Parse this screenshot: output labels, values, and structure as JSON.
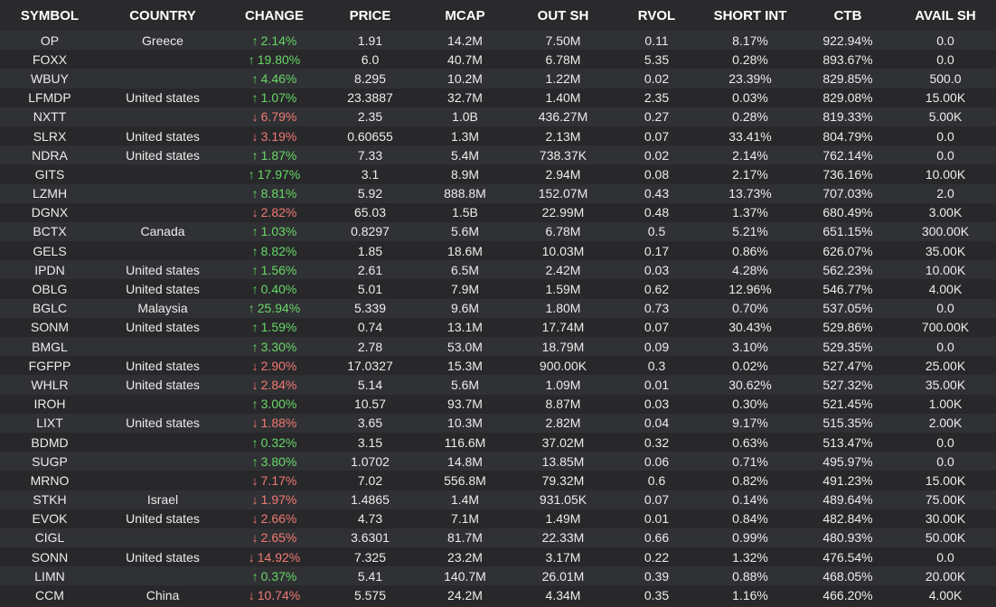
{
  "colors": {
    "positive": "#67d867",
    "negative": "#f07a72",
    "background": "#2b2b2e"
  },
  "icons": {
    "up": "arrow-up-icon",
    "down": "arrow-down-icon"
  },
  "headers": [
    "SYMBOL",
    "COUNTRY",
    "CHANGE",
    "PRICE",
    "MCAP",
    "OUT SH",
    "RVOL",
    "SHORT INT",
    "CTB",
    "AVAIL SH"
  ],
  "rows": [
    {
      "symbol": "OP",
      "country": "Greece",
      "dir": "up",
      "change": "2.14%",
      "price": "1.91",
      "mcap": "14.2M",
      "out_sh": "7.50M",
      "rvol": "0.11",
      "short_int": "8.17%",
      "ctb": "922.94%",
      "avail_sh": "0.0"
    },
    {
      "symbol": "FOXX",
      "country": "",
      "dir": "up",
      "change": "19.80%",
      "price": "6.0",
      "mcap": "40.7M",
      "out_sh": "6.78M",
      "rvol": "5.35",
      "short_int": "0.28%",
      "ctb": "893.67%",
      "avail_sh": "0.0"
    },
    {
      "symbol": "WBUY",
      "country": "",
      "dir": "up",
      "change": "4.46%",
      "price": "8.295",
      "mcap": "10.2M",
      "out_sh": "1.22M",
      "rvol": "0.02",
      "short_int": "23.39%",
      "ctb": "829.85%",
      "avail_sh": "500.0"
    },
    {
      "symbol": "LFMDP",
      "country": "United states",
      "dir": "up",
      "change": "1.07%",
      "price": "23.3887",
      "mcap": "32.7M",
      "out_sh": "1.40M",
      "rvol": "2.35",
      "short_int": "0.03%",
      "ctb": "829.08%",
      "avail_sh": "15.00K"
    },
    {
      "symbol": "NXTT",
      "country": "",
      "dir": "down",
      "change": "6.79%",
      "price": "2.35",
      "mcap": "1.0B",
      "out_sh": "436.27M",
      "rvol": "0.27",
      "short_int": "0.28%",
      "ctb": "819.33%",
      "avail_sh": "5.00K"
    },
    {
      "symbol": "SLRX",
      "country": "United states",
      "dir": "down",
      "change": "3.19%",
      "price": "0.60655",
      "mcap": "1.3M",
      "out_sh": "2.13M",
      "rvol": "0.07",
      "short_int": "33.41%",
      "ctb": "804.79%",
      "avail_sh": "0.0"
    },
    {
      "symbol": "NDRA",
      "country": "United states",
      "dir": "up",
      "change": "1.87%",
      "price": "7.33",
      "mcap": "5.4M",
      "out_sh": "738.37K",
      "rvol": "0.02",
      "short_int": "2.14%",
      "ctb": "762.14%",
      "avail_sh": "0.0"
    },
    {
      "symbol": "GITS",
      "country": "",
      "dir": "up",
      "change": "17.97%",
      "price": "3.1",
      "mcap": "8.9M",
      "out_sh": "2.94M",
      "rvol": "0.08",
      "short_int": "2.17%",
      "ctb": "736.16%",
      "avail_sh": "10.00K"
    },
    {
      "symbol": "LZMH",
      "country": "",
      "dir": "up",
      "change": "8.81%",
      "price": "5.92",
      "mcap": "888.8M",
      "out_sh": "152.07M",
      "rvol": "0.43",
      "short_int": "13.73%",
      "ctb": "707.03%",
      "avail_sh": "2.0"
    },
    {
      "symbol": "DGNX",
      "country": "",
      "dir": "down",
      "change": "2.82%",
      "price": "65.03",
      "mcap": "1.5B",
      "out_sh": "22.99M",
      "rvol": "0.48",
      "short_int": "1.37%",
      "ctb": "680.49%",
      "avail_sh": "3.00K"
    },
    {
      "symbol": "BCTX",
      "country": "Canada",
      "dir": "up",
      "change": "1.03%",
      "price": "0.8297",
      "mcap": "5.6M",
      "out_sh": "6.78M",
      "rvol": "0.5",
      "short_int": "5.21%",
      "ctb": "651.15%",
      "avail_sh": "300.00K"
    },
    {
      "symbol": "GELS",
      "country": "",
      "dir": "up",
      "change": "8.82%",
      "price": "1.85",
      "mcap": "18.6M",
      "out_sh": "10.03M",
      "rvol": "0.17",
      "short_int": "0.86%",
      "ctb": "626.07%",
      "avail_sh": "35.00K"
    },
    {
      "symbol": "IPDN",
      "country": "United states",
      "dir": "up",
      "change": "1.56%",
      "price": "2.61",
      "mcap": "6.5M",
      "out_sh": "2.42M",
      "rvol": "0.03",
      "short_int": "4.28%",
      "ctb": "562.23%",
      "avail_sh": "10.00K"
    },
    {
      "symbol": "OBLG",
      "country": "United states",
      "dir": "up",
      "change": "0.40%",
      "price": "5.01",
      "mcap": "7.9M",
      "out_sh": "1.59M",
      "rvol": "0.62",
      "short_int": "12.96%",
      "ctb": "546.77%",
      "avail_sh": "4.00K"
    },
    {
      "symbol": "BGLC",
      "country": "Malaysia",
      "dir": "up",
      "change": "25.94%",
      "price": "5.339",
      "mcap": "9.6M",
      "out_sh": "1.80M",
      "rvol": "0.73",
      "short_int": "0.70%",
      "ctb": "537.05%",
      "avail_sh": "0.0"
    },
    {
      "symbol": "SONM",
      "country": "United states",
      "dir": "up",
      "change": "1.59%",
      "price": "0.74",
      "mcap": "13.1M",
      "out_sh": "17.74M",
      "rvol": "0.07",
      "short_int": "30.43%",
      "ctb": "529.86%",
      "avail_sh": "700.00K"
    },
    {
      "symbol": "BMGL",
      "country": "",
      "dir": "up",
      "change": "3.30%",
      "price": "2.78",
      "mcap": "53.0M",
      "out_sh": "18.79M",
      "rvol": "0.09",
      "short_int": "3.10%",
      "ctb": "529.35%",
      "avail_sh": "0.0"
    },
    {
      "symbol": "FGFPP",
      "country": "United states",
      "dir": "down",
      "change": "2.90%",
      "price": "17.0327",
      "mcap": "15.3M",
      "out_sh": "900.00K",
      "rvol": "0.3",
      "short_int": "0.02%",
      "ctb": "527.47%",
      "avail_sh": "25.00K"
    },
    {
      "symbol": "WHLR",
      "country": "United states",
      "dir": "down",
      "change": "2.84%",
      "price": "5.14",
      "mcap": "5.6M",
      "out_sh": "1.09M",
      "rvol": "0.01",
      "short_int": "30.62%",
      "ctb": "527.32%",
      "avail_sh": "35.00K"
    },
    {
      "symbol": "IROH",
      "country": "",
      "dir": "up",
      "change": "3.00%",
      "price": "10.57",
      "mcap": "93.7M",
      "out_sh": "8.87M",
      "rvol": "0.03",
      "short_int": "0.30%",
      "ctb": "521.45%",
      "avail_sh": "1.00K"
    },
    {
      "symbol": "LIXT",
      "country": "United states",
      "dir": "down",
      "change": "1.88%",
      "price": "3.65",
      "mcap": "10.3M",
      "out_sh": "2.82M",
      "rvol": "0.04",
      "short_int": "9.17%",
      "ctb": "515.35%",
      "avail_sh": "2.00K"
    },
    {
      "symbol": "BDMD",
      "country": "",
      "dir": "up",
      "change": "0.32%",
      "price": "3.15",
      "mcap": "116.6M",
      "out_sh": "37.02M",
      "rvol": "0.32",
      "short_int": "0.63%",
      "ctb": "513.47%",
      "avail_sh": "0.0"
    },
    {
      "symbol": "SUGP",
      "country": "",
      "dir": "up",
      "change": "3.80%",
      "price": "1.0702",
      "mcap": "14.8M",
      "out_sh": "13.85M",
      "rvol": "0.06",
      "short_int": "0.71%",
      "ctb": "495.97%",
      "avail_sh": "0.0"
    },
    {
      "symbol": "MRNO",
      "country": "",
      "dir": "down",
      "change": "7.17%",
      "price": "7.02",
      "mcap": "556.8M",
      "out_sh": "79.32M",
      "rvol": "0.6",
      "short_int": "0.82%",
      "ctb": "491.23%",
      "avail_sh": "15.00K"
    },
    {
      "symbol": "STKH",
      "country": "Israel",
      "dir": "down",
      "change": "1.97%",
      "price": "1.4865",
      "mcap": "1.4M",
      "out_sh": "931.05K",
      "rvol": "0.07",
      "short_int": "0.14%",
      "ctb": "489.64%",
      "avail_sh": "75.00K"
    },
    {
      "symbol": "EVOK",
      "country": "United states",
      "dir": "down",
      "change": "2.66%",
      "price": "4.73",
      "mcap": "7.1M",
      "out_sh": "1.49M",
      "rvol": "0.01",
      "short_int": "0.84%",
      "ctb": "482.84%",
      "avail_sh": "30.00K"
    },
    {
      "symbol": "CIGL",
      "country": "",
      "dir": "down",
      "change": "2.65%",
      "price": "3.6301",
      "mcap": "81.7M",
      "out_sh": "22.33M",
      "rvol": "0.66",
      "short_int": "0.99%",
      "ctb": "480.93%",
      "avail_sh": "50.00K"
    },
    {
      "symbol": "SONN",
      "country": "United states",
      "dir": "down",
      "change": "14.92%",
      "price": "7.325",
      "mcap": "23.2M",
      "out_sh": "3.17M",
      "rvol": "0.22",
      "short_int": "1.32%",
      "ctb": "476.54%",
      "avail_sh": "0.0"
    },
    {
      "symbol": "LIMN",
      "country": "",
      "dir": "up",
      "change": "0.37%",
      "price": "5.41",
      "mcap": "140.7M",
      "out_sh": "26.01M",
      "rvol": "0.39",
      "short_int": "0.88%",
      "ctb": "468.05%",
      "avail_sh": "20.00K"
    },
    {
      "symbol": "CCM",
      "country": "China",
      "dir": "down",
      "change": "10.74%",
      "price": "5.575",
      "mcap": "24.2M",
      "out_sh": "4.34M",
      "rvol": "0.35",
      "short_int": "1.16%",
      "ctb": "466.20%",
      "avail_sh": "4.00K"
    }
  ]
}
